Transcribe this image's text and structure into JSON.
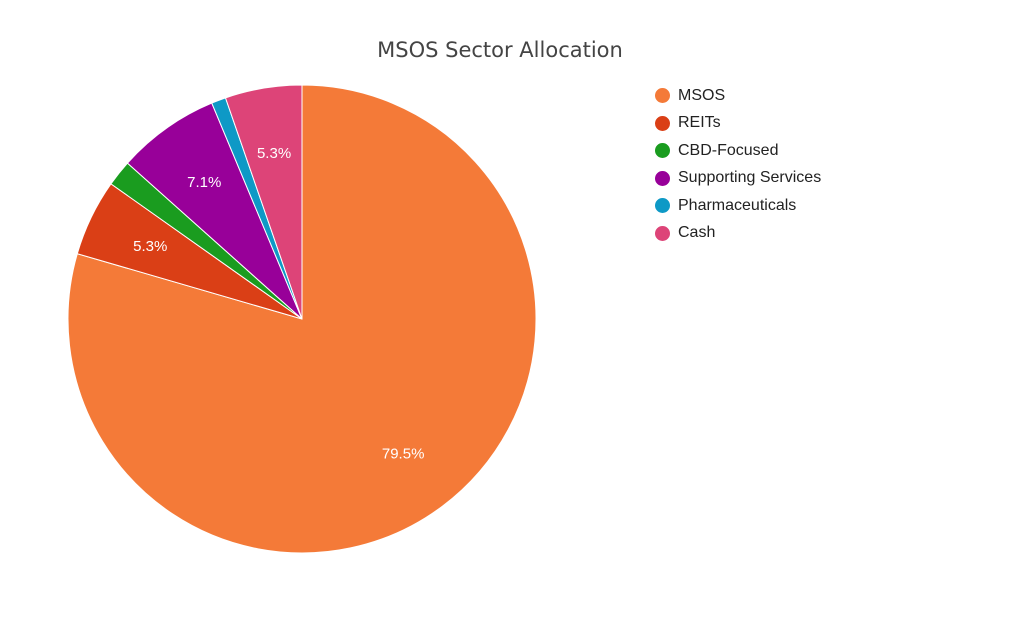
{
  "chart_data": {
    "type": "pie",
    "title": "MSOS Sector Allocation",
    "start": "12 o'clock",
    "direction": "clockwise",
    "slices": [
      {
        "name": "MSOS",
        "value": 79.5,
        "label": "79.5%",
        "color": "#f47a38"
      },
      {
        "name": "REITs",
        "value": 5.3,
        "label": "5.3%",
        "color": "#da3f16"
      },
      {
        "name": "CBD-Focused",
        "value": 1.8,
        "label": "",
        "color": "#1a9c1f"
      },
      {
        "name": "Supporting Services",
        "value": 7.1,
        "label": "7.1%",
        "color": "#980099"
      },
      {
        "name": "Pharmaceuticals",
        "value": 1.0,
        "label": "",
        "color": "#0e99c6"
      },
      {
        "name": "Cash",
        "value": 5.3,
        "label": "5.3%",
        "color": "#dd4478"
      }
    ],
    "legend_position": "right"
  }
}
